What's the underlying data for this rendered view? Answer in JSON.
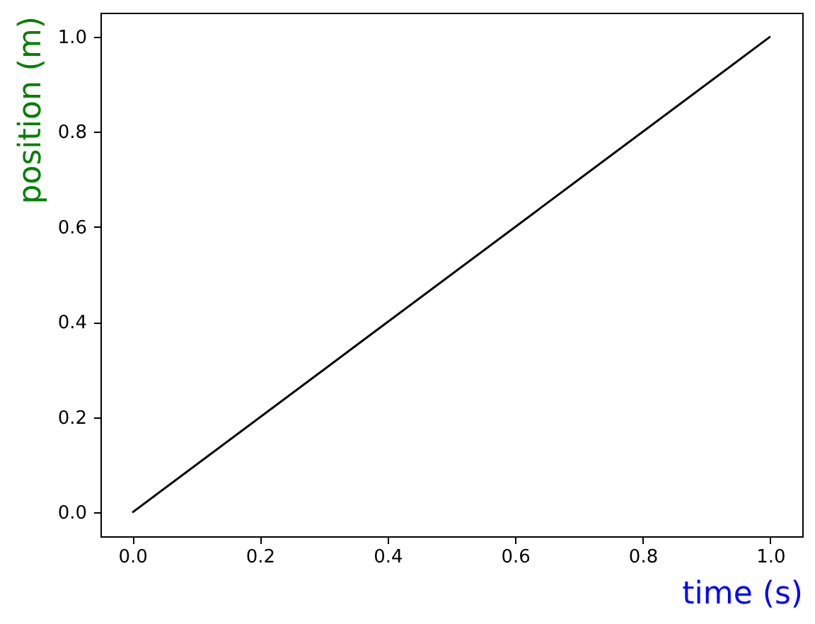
{
  "chart_data": {
    "type": "line",
    "xlabel": "time (s)",
    "ylabel": "position (m)",
    "x": [
      0,
      1
    ],
    "series": [
      {
        "color": "#000000",
        "values": [
          0,
          1
        ]
      }
    ],
    "xlim": [
      -0.05,
      1.05
    ],
    "ylim": [
      -0.05,
      1.05
    ],
    "xticks": [
      {
        "value": 0,
        "label": "0.0"
      },
      0.2,
      0.4,
      0.6,
      0.8,
      {
        "value": 1,
        "label": "1.0"
      }
    ],
    "yticks": [
      {
        "value": 0,
        "label": "0.0"
      },
      0.2,
      0.4,
      0.6,
      0.8,
      {
        "value": 1,
        "label": "1.0"
      }
    ],
    "grid": false,
    "marker": "none",
    "line_style": "solid"
  }
}
